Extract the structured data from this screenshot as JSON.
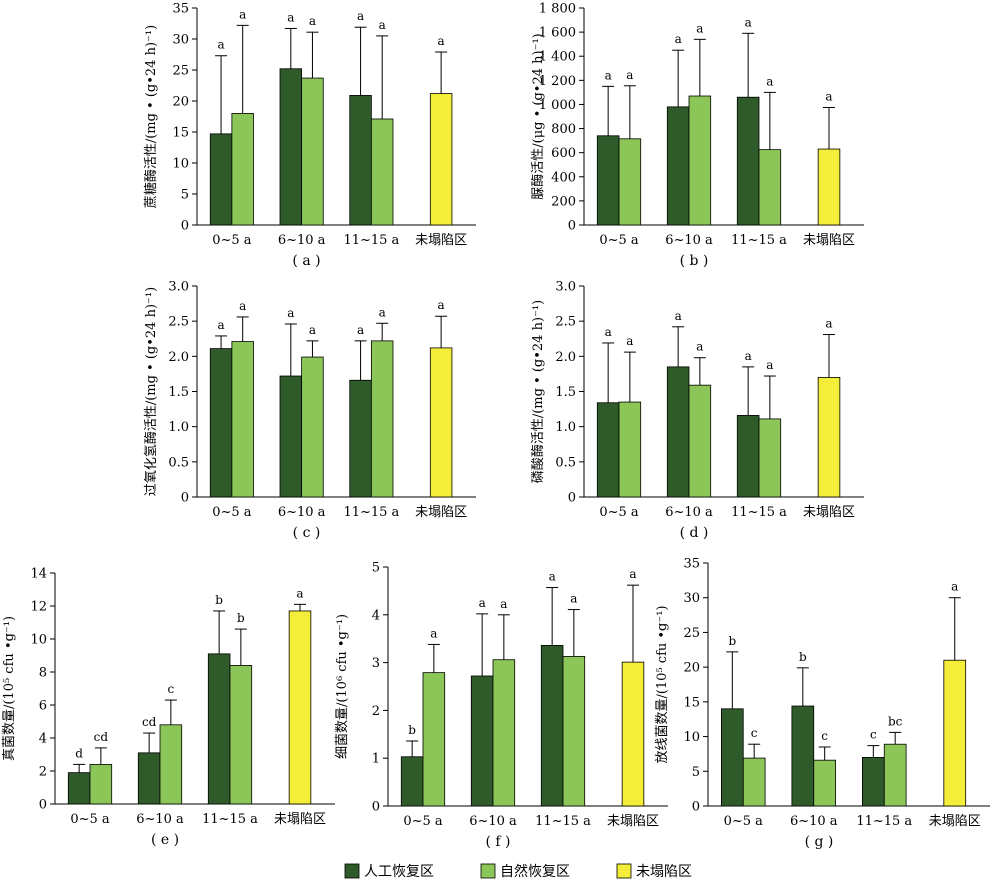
{
  "colors": {
    "series0": "#2f5a2a",
    "series1": "#8cc659",
    "series2": "#f4ee3a"
  },
  "legend": {
    "items": [
      "人工恢复区",
      "自然恢复区",
      "未塌陷区"
    ]
  },
  "chart_data": [
    {
      "type": "bar",
      "panel_label": "( a )",
      "ylabel": "蔗糖酶活性/(mg • (g•24 h)⁻¹)",
      "ylim": [
        0,
        35
      ],
      "yticks": [
        "0",
        "5",
        "10",
        "15",
        "20",
        "25",
        "30",
        "35"
      ],
      "categories": [
        "0~5  a",
        "6~10  a",
        "11~15  a",
        "未塌陷区"
      ],
      "series": [
        {
          "name": "人工恢复区",
          "values": [
            14.7,
            25.2,
            20.9,
            null
          ],
          "errors": [
            12.6,
            6.5,
            11.0,
            null
          ],
          "labels": [
            "a",
            "a",
            "a",
            ""
          ]
        },
        {
          "name": "自然恢复区",
          "values": [
            18.0,
            23.7,
            17.1,
            null
          ],
          "errors": [
            14.2,
            7.4,
            13.4,
            null
          ],
          "labels": [
            "a",
            "a",
            "a",
            ""
          ]
        },
        {
          "name": "未塌陷区",
          "values": [
            null,
            null,
            null,
            21.2
          ],
          "errors": [
            null,
            null,
            null,
            6.7
          ],
          "labels": [
            "",
            "",
            "",
            "a"
          ]
        }
      ]
    },
    {
      "type": "bar",
      "panel_label": "( b )",
      "ylabel": "脲酶活性/(μg • (g•24 h)⁻¹)",
      "ylim": [
        0,
        1800
      ],
      "yticks": [
        "0",
        "200",
        "400",
        "600",
        "800",
        "1 000",
        "1 200",
        "1 400",
        "1 600",
        "1 800"
      ],
      "categories": [
        "0~5  a",
        "6~10  a",
        "11~15  a",
        "未塌陷区"
      ],
      "series": [
        {
          "name": "人工恢复区",
          "values": [
            740,
            980,
            1060,
            null
          ],
          "errors": [
            410,
            470,
            530,
            null
          ],
          "labels": [
            "a",
            "a",
            "a",
            ""
          ]
        },
        {
          "name": "自然恢复区",
          "values": [
            715,
            1070,
            625,
            null
          ],
          "errors": [
            440,
            470,
            475,
            null
          ],
          "labels": [
            "a",
            "a",
            "a",
            ""
          ]
        },
        {
          "name": "未塌陷区",
          "values": [
            null,
            null,
            null,
            630
          ],
          "errors": [
            null,
            null,
            null,
            345
          ],
          "labels": [
            "",
            "",
            "",
            "a"
          ]
        }
      ]
    },
    {
      "type": "bar",
      "panel_label": "( c )",
      "ylabel": "过氧化氢酶活性/(mg • (g•24 h)⁻¹)",
      "ylim": [
        0,
        3.0
      ],
      "yticks": [
        "0",
        "0.5",
        "1.0",
        "1.5",
        "2.0",
        "2.5",
        "3.0"
      ],
      "categories": [
        "0~5  a",
        "6~10  a",
        "11~15  a",
        "未塌陷区"
      ],
      "series": [
        {
          "name": "人工恢复区",
          "values": [
            2.11,
            1.72,
            1.66,
            null
          ],
          "errors": [
            0.18,
            0.74,
            0.56,
            null
          ],
          "labels": [
            "a",
            "a",
            "a",
            ""
          ]
        },
        {
          "name": "自然恢复区",
          "values": [
            2.21,
            1.99,
            2.22,
            null
          ],
          "errors": [
            0.35,
            0.23,
            0.25,
            null
          ],
          "labels": [
            "a",
            "a",
            "a",
            ""
          ]
        },
        {
          "name": "未塌陷区",
          "values": [
            null,
            null,
            null,
            2.12
          ],
          "errors": [
            null,
            null,
            null,
            0.45
          ],
          "labels": [
            "",
            "",
            "",
            "a"
          ]
        }
      ]
    },
    {
      "type": "bar",
      "panel_label": "( d )",
      "ylabel": "磷酸酶活性/(mg • (g•24 h)⁻¹)",
      "ylim": [
        0,
        3.0
      ],
      "yticks": [
        "0",
        "0.5",
        "1.0",
        "1.5",
        "2.0",
        "2.5",
        "3.0"
      ],
      "categories": [
        "0~5  a",
        "6~10  a",
        "11~15  a",
        "未塌陷区"
      ],
      "series": [
        {
          "name": "人工恢复区",
          "values": [
            1.34,
            1.85,
            1.16,
            null
          ],
          "errors": [
            0.85,
            0.57,
            0.69,
            null
          ],
          "labels": [
            "a",
            "a",
            "a",
            ""
          ]
        },
        {
          "name": "自然恢复区",
          "values": [
            1.35,
            1.59,
            1.11,
            null
          ],
          "errors": [
            0.71,
            0.39,
            0.61,
            null
          ],
          "labels": [
            "a",
            "a",
            "a",
            ""
          ]
        },
        {
          "name": "未塌陷区",
          "values": [
            null,
            null,
            null,
            1.7
          ],
          "errors": [
            null,
            null,
            null,
            0.61
          ],
          "labels": [
            "",
            "",
            "",
            "a"
          ]
        }
      ]
    },
    {
      "type": "bar",
      "panel_label": "( e )",
      "ylabel": "真菌数量/(10⁵ cfu •g⁻¹)",
      "ylim": [
        0,
        14
      ],
      "yticks": [
        "0",
        "2",
        "4",
        "6",
        "8",
        "10",
        "12",
        "14"
      ],
      "categories": [
        "0~5  a",
        "6~10  a",
        "11~15  a",
        "未塌陷区"
      ],
      "series": [
        {
          "name": "人工恢复区",
          "values": [
            1.9,
            3.1,
            9.1,
            null
          ],
          "errors": [
            0.5,
            1.2,
            2.6,
            null
          ],
          "labels": [
            "d",
            "cd",
            "b",
            ""
          ]
        },
        {
          "name": "自然恢复区",
          "values": [
            2.4,
            4.8,
            8.4,
            null
          ],
          "errors": [
            1.0,
            1.5,
            2.2,
            null
          ],
          "labels": [
            "cd",
            "c",
            "b",
            ""
          ]
        },
        {
          "name": "未塌陷区",
          "values": [
            null,
            null,
            null,
            11.7
          ],
          "errors": [
            null,
            null,
            null,
            0.4
          ],
          "labels": [
            "",
            "",
            "",
            "a"
          ]
        }
      ]
    },
    {
      "type": "bar",
      "panel_label": "( f )",
      "ylabel": "细菌数量/(10⁶ cfu •g⁻¹)",
      "ylim": [
        0,
        5
      ],
      "yticks": [
        "0",
        "1",
        "2",
        "3",
        "4",
        "5"
      ],
      "categories": [
        "0~5  a",
        "6~10  a",
        "11~15  a",
        "未塌陷区"
      ],
      "series": [
        {
          "name": "人工恢复区",
          "values": [
            1.03,
            2.72,
            3.36,
            null
          ],
          "errors": [
            0.33,
            1.3,
            1.21,
            null
          ],
          "labels": [
            "b",
            "a",
            "a",
            ""
          ]
        },
        {
          "name": "自然恢复区",
          "values": [
            2.79,
            3.06,
            3.13,
            null
          ],
          "errors": [
            0.59,
            0.94,
            0.98,
            null
          ],
          "labels": [
            "a",
            "a",
            "a",
            ""
          ]
        },
        {
          "name": "未塌陷区",
          "values": [
            null,
            null,
            null,
            3.01
          ],
          "errors": [
            null,
            null,
            null,
            1.61
          ],
          "labels": [
            "",
            "",
            "",
            "a"
          ]
        }
      ]
    },
    {
      "type": "bar",
      "panel_label": "( g )",
      "ylabel": "放线菌数量/(10⁵ cfu •g⁻¹)",
      "ylim": [
        0,
        35
      ],
      "yticks": [
        "0",
        "5",
        "10",
        "15",
        "20",
        "25",
        "30",
        "35"
      ],
      "categories": [
        "0~5  a",
        "6~10  a",
        "11~15  a",
        "未塌陷区"
      ],
      "series": [
        {
          "name": "人工恢复区",
          "values": [
            14.0,
            14.4,
            7.0,
            null
          ],
          "errors": [
            8.2,
            5.5,
            1.7,
            null
          ],
          "labels": [
            "b",
            "b",
            "c",
            ""
          ]
        },
        {
          "name": "自然恢复区",
          "values": [
            6.9,
            6.6,
            8.9,
            null
          ],
          "errors": [
            2.0,
            1.9,
            1.7,
            null
          ],
          "labels": [
            "c",
            "c",
            "bc",
            ""
          ]
        },
        {
          "name": "未塌陷区",
          "values": [
            null,
            null,
            null,
            21.0
          ],
          "errors": [
            null,
            null,
            null,
            9.0
          ],
          "labels": [
            "",
            "",
            "",
            "a"
          ]
        }
      ]
    }
  ]
}
